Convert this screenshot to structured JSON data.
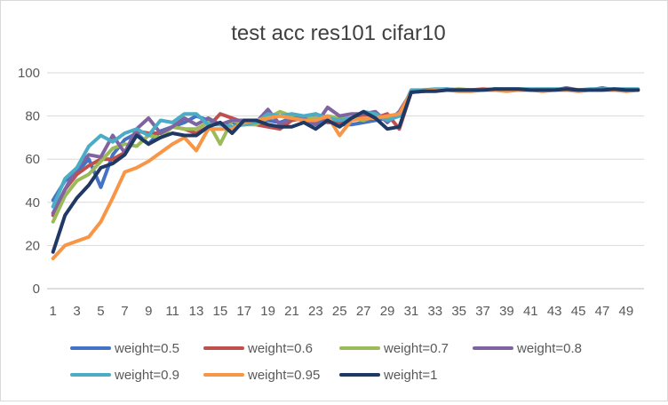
{
  "chart_data": {
    "type": "line",
    "title": "test acc res101 cifar10",
    "xlabel": "",
    "ylabel": "",
    "ylim": [
      0,
      100
    ],
    "yticks": [
      0,
      20,
      40,
      60,
      80,
      100
    ],
    "xticks": [
      "1",
      "3",
      "5",
      "7",
      "9",
      "11",
      "13",
      "15",
      "17",
      "19",
      "21",
      "23",
      "25",
      "27",
      "29",
      "31",
      "33",
      "35",
      "37",
      "39",
      "41",
      "43",
      "45",
      "47",
      "49"
    ],
    "x": [
      1,
      2,
      3,
      4,
      5,
      6,
      7,
      8,
      9,
      10,
      11,
      12,
      13,
      14,
      15,
      16,
      17,
      18,
      19,
      20,
      21,
      22,
      23,
      24,
      25,
      26,
      27,
      28,
      29,
      30,
      31,
      32,
      33,
      34,
      35,
      36,
      37,
      38,
      39,
      40,
      41,
      42,
      43,
      44,
      45,
      46,
      47,
      48,
      49,
      50
    ],
    "grid": "horizontal",
    "legend": "bottom",
    "series": [
      {
        "name": "weight=0.5",
        "color": "#4472c4",
        "values": [
          41,
          50,
          54,
          60,
          47,
          62,
          69,
          72,
          67,
          73,
          75,
          77,
          80,
          78,
          76,
          77,
          76,
          78,
          78,
          77,
          79,
          78,
          76,
          79,
          76,
          76,
          77,
          78,
          79,
          80,
          91,
          91.5,
          92,
          92,
          92,
          92,
          92,
          92.5,
          92,
          92,
          92,
          92,
          92,
          92,
          92,
          92,
          92,
          92,
          92,
          92
        ]
      },
      {
        "name": "weight=0.6",
        "color": "#c0504d",
        "values": [
          34,
          46,
          53,
          57,
          60,
          60,
          63,
          73,
          72,
          72,
          75,
          74,
          72,
          75,
          81,
          79,
          77,
          76,
          75,
          74,
          78,
          79,
          81,
          77,
          77,
          79,
          80,
          79,
          81,
          74,
          91,
          91.5,
          92,
          92,
          92,
          92,
          92.5,
          92,
          92,
          92,
          92,
          92,
          92,
          92,
          92,
          92,
          92,
          92,
          92,
          92
        ]
      },
      {
        "name": "weight=0.7",
        "color": "#9bbb59",
        "values": [
          31,
          43,
          50,
          53,
          59,
          65,
          67,
          66,
          71,
          70,
          75,
          74,
          74,
          77,
          67,
          78,
          76,
          76,
          79,
          82,
          80,
          79,
          79,
          80,
          79,
          79,
          78,
          80,
          79,
          81,
          91,
          92,
          92,
          92,
          92.5,
          92,
          92,
          92,
          92,
          92,
          92,
          92,
          92,
          92,
          92,
          92,
          92,
          92,
          92,
          92
        ]
      },
      {
        "name": "weight=0.8",
        "color": "#8064a2",
        "values": [
          35,
          46,
          56,
          62,
          61,
          71,
          63,
          74,
          79,
          72,
          75,
          79,
          76,
          79,
          76,
          78,
          78,
          77,
          83,
          76,
          79,
          79,
          76,
          84,
          80,
          81,
          81,
          82,
          77,
          82,
          91,
          92,
          92,
          92.5,
          92,
          92,
          92,
          92,
          92,
          92,
          92,
          92,
          92,
          93,
          92,
          92,
          93,
          92,
          92,
          92
        ]
      },
      {
        "name": "weight=0.9",
        "color": "#4bacc6",
        "values": [
          38,
          51,
          56,
          66,
          71,
          68,
          72,
          74,
          71,
          78,
          77,
          81,
          81,
          76,
          76,
          75,
          76,
          77,
          81,
          80,
          81,
          80,
          81,
          79,
          78,
          79,
          82,
          81,
          78,
          80,
          92,
          92,
          92.5,
          92.5,
          92,
          92,
          92,
          92.5,
          92.5,
          92.5,
          92.5,
          92.5,
          92.5,
          92.5,
          92,
          92.5,
          92.5,
          92.5,
          92.5,
          92.5
        ]
      },
      {
        "name": "weight=0.95",
        "color": "#f79646",
        "values": [
          14,
          20,
          22,
          24,
          31,
          42,
          54,
          56,
          59,
          63,
          67,
          70,
          64,
          74,
          74,
          74,
          77,
          78,
          79,
          80,
          79,
          78,
          78,
          80,
          71,
          78,
          79,
          79,
          80,
          81,
          91,
          91.5,
          92,
          92,
          91.5,
          91.5,
          92,
          92,
          91.5,
          92,
          92,
          91.5,
          92,
          92,
          91.5,
          92,
          92,
          92,
          91.5,
          92
        ]
      },
      {
        "name": "weight=1",
        "color": "#1f3864",
        "values": [
          17,
          34,
          42,
          48,
          56,
          58,
          62,
          71,
          67,
          70,
          72,
          71,
          71,
          75,
          77,
          72,
          78,
          78,
          76,
          75,
          75,
          77,
          74,
          78,
          75,
          79,
          82,
          79,
          74,
          75,
          91,
          91.5,
          91.5,
          92,
          92,
          92,
          92,
          92.5,
          92.5,
          92.5,
          92,
          92,
          92,
          92.5,
          92,
          92,
          92,
          92.5,
          92,
          92
        ]
      }
    ]
  }
}
